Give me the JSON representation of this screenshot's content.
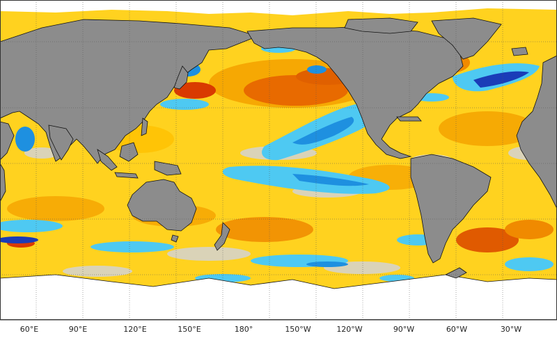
{
  "map": {
    "projection": "equirectangular",
    "center_longitude": "180",
    "longitude_labels": [
      "60°E",
      "90°E",
      "120°E",
      "150°E",
      "180°",
      "150°W",
      "120°W",
      "90°W",
      "60°W",
      "30°W"
    ],
    "colors": {
      "land": "#8c8c8c",
      "ice_ocean_blank": "#ffffff",
      "near_zero": "#d4d4d4",
      "warm_light": "#ffe21a",
      "warm_mid": "#ffb300",
      "warm_strong": "#f07a00",
      "hot": "#d93a00",
      "cool_light": "#4ec9f2",
      "cool_mid": "#1e90e0",
      "cold": "#1a3cb8",
      "grid_line": "#555555",
      "coastline": "#111111"
    }
  }
}
